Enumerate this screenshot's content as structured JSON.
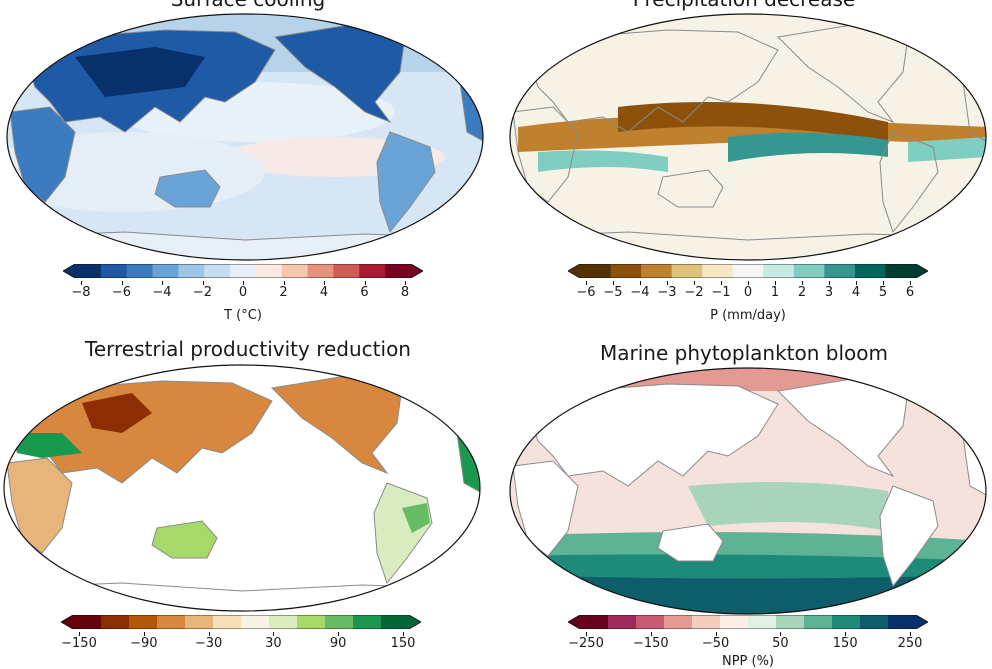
{
  "panels": [
    {
      "title": "Surface cooling",
      "variable": "surface-temperature",
      "colormap": [
        "#08306b",
        "#1f5aa6",
        "#3c7bbf",
        "#6aa3d6",
        "#9cc5e6",
        "#c6ddf1",
        "#e7f0f8",
        "#fbe9e0",
        "#f6c6ad",
        "#e8917c",
        "#cf5b57",
        "#a81b32",
        "#7a0021"
      ],
      "ticks": [
        "−8",
        "−6",
        "−4",
        "−2",
        "0",
        "2",
        "4",
        "6",
        "8"
      ],
      "label": "T (°C)"
    },
    {
      "title": "Precipitation decrease",
      "variable": "precipitation",
      "colormap": [
        "#543005",
        "#8c510a",
        "#bf812d",
        "#dfc27d",
        "#f6e8c3",
        "#f5f5f5",
        "#c7eae5",
        "#80cdc1",
        "#35978f",
        "#01665e",
        "#003c30"
      ],
      "ticks": [
        "−6",
        "−5",
        "−4",
        "−3",
        "−2",
        "−1",
        "0",
        "1",
        "2",
        "3",
        "4",
        "5",
        "6"
      ],
      "label": "P (mm/day)"
    },
    {
      "title": "Terrestrial productivity reduction",
      "variable": "terrestrial-npp",
      "colormap": [
        "#67000d",
        "#8c2d04",
        "#b35806",
        "#d8873e",
        "#e7b57a",
        "#f5dfb6",
        "#f7f4e4",
        "#d9ecc0",
        "#a6d96a",
        "#66bd63",
        "#1a9850",
        "#006837"
      ],
      "ticks": [
        "−150",
        "−90",
        "−30",
        "30",
        "90",
        "150"
      ],
      "label": ""
    },
    {
      "title": "Marine phytoplankton bloom",
      "variable": "marine-npp",
      "colormap": [
        "#67001f",
        "#a02a5a",
        "#c85a74",
        "#e39a93",
        "#f4cdbf",
        "#fbeee6",
        "#e2efe4",
        "#a8d5ba",
        "#5fb395",
        "#1d8a7a",
        "#0d5d6b",
        "#08306b"
      ],
      "ticks": [
        "−250",
        "−150",
        "−50",
        "50",
        "150",
        "250"
      ],
      "label": "NPP (%)"
    }
  ],
  "colors": {
    "land_outline": "#8a8a8a",
    "map_border": "#111111",
    "ocean_blank": "#ffffff"
  }
}
